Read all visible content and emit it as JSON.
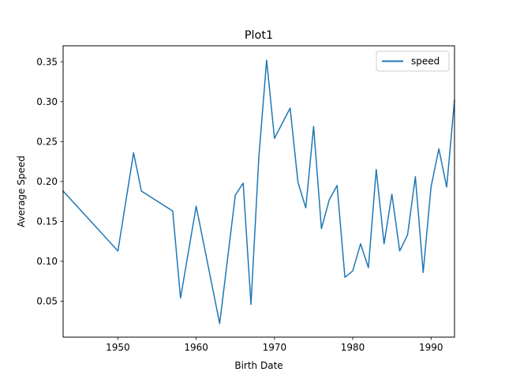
{
  "chart_data": {
    "type": "line",
    "title": "Plot1",
    "xlabel": "Birth Date",
    "ylabel": "Average Speed",
    "xlim": [
      1943,
      1993
    ],
    "ylim": [
      0.005,
      0.37
    ],
    "xticks": [
      1950,
      1960,
      1970,
      1980,
      1990
    ],
    "yticks": [
      0.05,
      0.1,
      0.15,
      0.2,
      0.25,
      0.3,
      0.35
    ],
    "ytick_labels": [
      "0.05",
      "0.10",
      "0.15",
      "0.20",
      "0.25",
      "0.30",
      "0.35"
    ],
    "grid": false,
    "legend_position": "top-right",
    "series": [
      {
        "name": "speed",
        "color": "#1f77b4",
        "x": [
          1943,
          1950,
          1952,
          1953,
          1957,
          1958,
          1960,
          1963,
          1965,
          1966,
          1967,
          1968,
          1969,
          1970,
          1972,
          1973,
          1974,
          1975,
          1976,
          1977,
          1978,
          1979,
          1980,
          1981,
          1982,
          1983,
          1984,
          1985,
          1986,
          1987,
          1988,
          1989,
          1990,
          1991,
          1992,
          1993
        ],
        "y": [
          0.188,
          0.113,
          0.236,
          0.188,
          0.163,
          0.054,
          0.169,
          0.022,
          0.183,
          0.198,
          0.046,
          0.23,
          0.352,
          0.254,
          0.292,
          0.199,
          0.167,
          0.269,
          0.141,
          0.177,
          0.195,
          0.08,
          0.088,
          0.122,
          0.092,
          0.215,
          0.122,
          0.184,
          0.113,
          0.133,
          0.206,
          0.086,
          0.193,
          0.241,
          0.193,
          0.302
        ]
      }
    ]
  }
}
